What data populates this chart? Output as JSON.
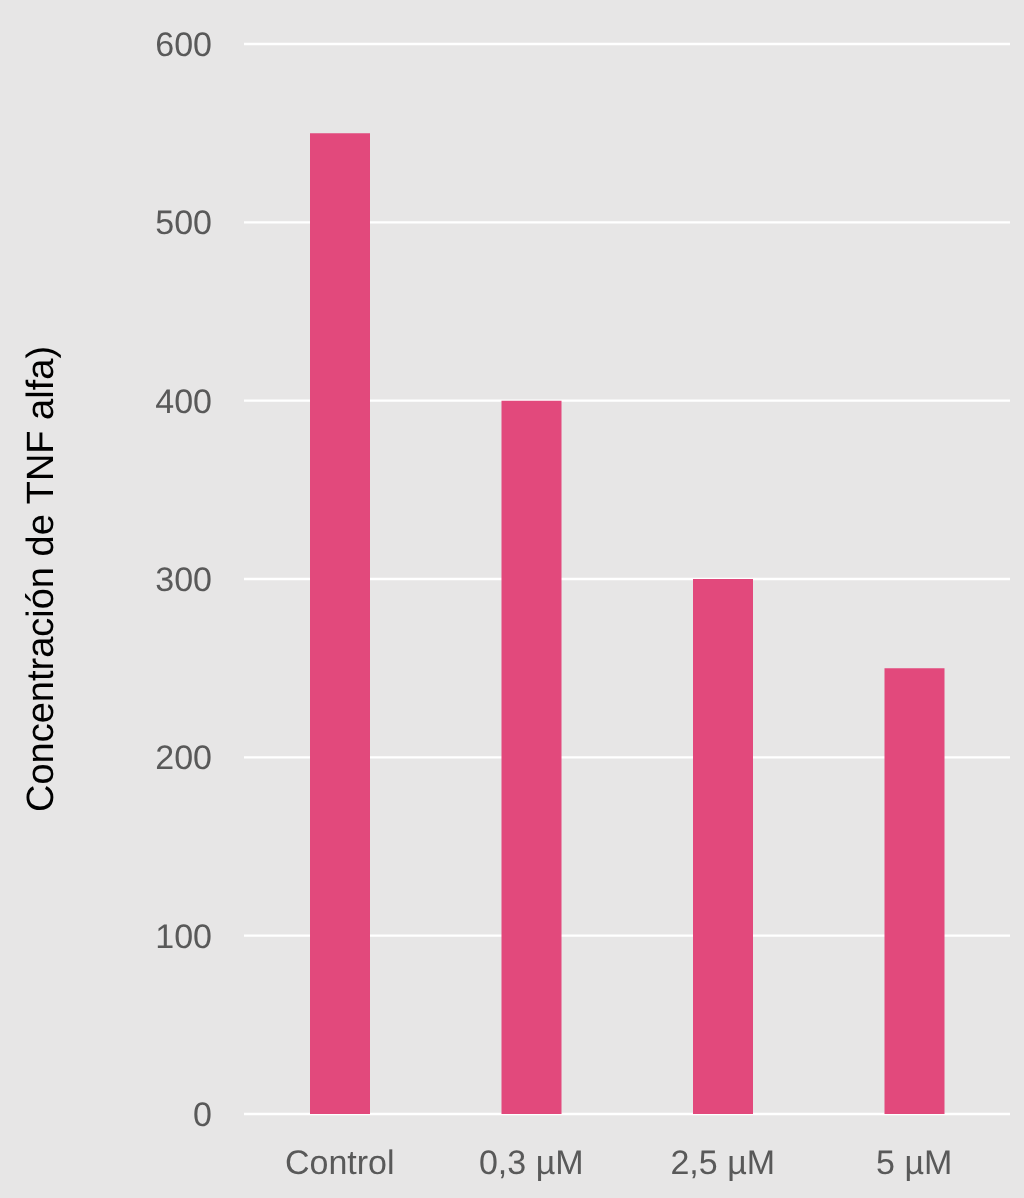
{
  "chart_data": {
    "type": "bar",
    "ylabel": "Concentración de TNF alfa)",
    "categories": [
      "Control",
      "0,3 µM",
      "2,5 µM",
      "5 µM"
    ],
    "values": [
      550,
      400,
      300,
      250
    ],
    "color": "#e2497c",
    "ylim": [
      0,
      600
    ],
    "yticks": [
      0,
      100,
      200,
      300,
      400,
      500,
      600
    ],
    "grid": "y"
  }
}
